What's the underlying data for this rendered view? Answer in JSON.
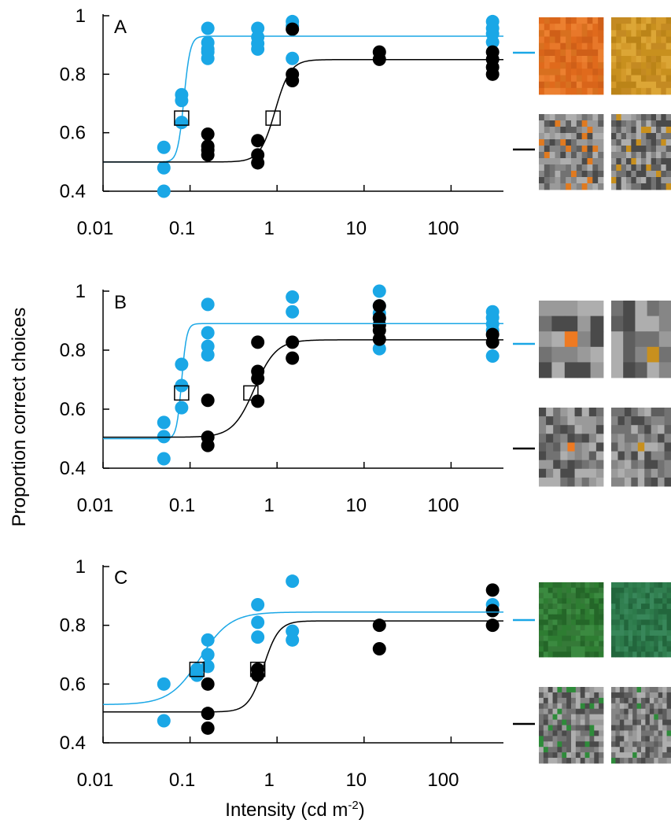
{
  "ylabel": "Proportion correct choices",
  "xlabel": {
    "text": "Intensity (cd m",
    "superscript": "-2",
    "suffix": ")"
  },
  "chart_data": [
    {
      "type": "scatter",
      "label": "A",
      "xlog": true,
      "xlim": [
        0.01,
        400
      ],
      "ylim": [
        0.4,
        1
      ],
      "xticks": [
        0.01,
        0.1,
        1,
        10,
        100
      ],
      "yticks": [
        0.4,
        0.6,
        0.8,
        1
      ],
      "series": [
        {
          "color": "#1aa7e6",
          "x": [
            0.05,
            0.05,
            0.05,
            0.08,
            0.08,
            0.08,
            0.16,
            0.16,
            0.16,
            0.16,
            0.16,
            0.6,
            0.6,
            0.6,
            0.6,
            1.5,
            1.5,
            1.5,
            300,
            300,
            300,
            300
          ],
          "y": [
            0.55,
            0.48,
            0.4,
            0.73,
            0.71,
            0.635,
            0.957,
            0.908,
            0.886,
            0.876,
            0.854,
            0.957,
            0.927,
            0.905,
            0.886,
            0.98,
            0.965,
            0.854,
            0.98,
            0.957,
            0.938,
            0.91
          ],
          "threshold": {
            "x": 0.08,
            "y": 0.65
          },
          "fit": {
            "lower": 0.5,
            "upper": 0.93,
            "midpoint": 0.085,
            "slope": 12
          }
        },
        {
          "color": "#000000",
          "x": [
            0.16,
            0.16,
            0.16,
            0.16,
            0.6,
            0.6,
            0.6,
            1.5,
            1.5,
            1.5,
            15,
            15,
            300,
            300,
            300,
            300
          ],
          "y": [
            0.595,
            0.554,
            0.541,
            0.524,
            0.573,
            0.524,
            0.497,
            0.954,
            0.8,
            0.778,
            0.876,
            0.851,
            0.876,
            0.851,
            0.824,
            0.8
          ],
          "threshold": {
            "x": 0.9,
            "y": 0.65
          },
          "fit": {
            "lower": 0.5,
            "upper": 0.85,
            "midpoint": 0.95,
            "slope": 5
          }
        }
      ]
    },
    {
      "type": "scatter",
      "label": "B",
      "xlog": true,
      "xlim": [
        0.01,
        400
      ],
      "ylim": [
        0.4,
        1
      ],
      "xticks": [
        0.01,
        0.1,
        1,
        10,
        100
      ],
      "yticks": [
        0.4,
        0.6,
        0.8,
        1
      ],
      "series": [
        {
          "color": "#1aa7e6",
          "x": [
            0.05,
            0.05,
            0.05,
            0.08,
            0.08,
            0.08,
            0.16,
            0.16,
            0.16,
            0.16,
            1.5,
            1.5,
            15,
            15,
            15,
            15,
            15,
            300,
            300,
            300,
            300,
            300
          ],
          "y": [
            0.555,
            0.507,
            0.432,
            0.752,
            0.68,
            0.605,
            0.955,
            0.859,
            0.813,
            0.784,
            0.98,
            0.93,
            1.0,
            0.95,
            0.925,
            0.907,
            0.805,
            0.93,
            0.91,
            0.888,
            0.867,
            0.78
          ],
          "threshold": {
            "x": 0.08,
            "y": 0.655
          },
          "fit": {
            "lower": 0.5,
            "upper": 0.89,
            "midpoint": 0.08,
            "slope": 15
          }
        },
        {
          "color": "#000000",
          "x": [
            0.16,
            0.16,
            0.16,
            0.6,
            0.6,
            0.6,
            0.6,
            1.5,
            1.5,
            15,
            15,
            15,
            15,
            15,
            300,
            300
          ],
          "y": [
            0.63,
            0.505,
            0.477,
            0.827,
            0.728,
            0.704,
            0.627,
            0.827,
            0.773,
            0.95,
            0.909,
            0.885,
            0.867,
            0.837,
            0.853,
            0.827
          ],
          "threshold": {
            "x": 0.5,
            "y": 0.655
          },
          "fit": {
            "lower": 0.505,
            "upper": 0.835,
            "midpoint": 0.55,
            "slope": 3.5
          }
        }
      ]
    },
    {
      "type": "scatter",
      "label": "C",
      "xlog": true,
      "xlim": [
        0.01,
        400
      ],
      "ylim": [
        0.4,
        1
      ],
      "xticks": [
        0.01,
        0.1,
        1,
        10,
        100
      ],
      "yticks": [
        0.4,
        0.6,
        0.8,
        1
      ],
      "series": [
        {
          "color": "#1aa7e6",
          "x": [
            0.05,
            0.05,
            0.12,
            0.12,
            0.16,
            0.16,
            0.16,
            0.6,
            0.6,
            0.6,
            1.5,
            1.5,
            1.5,
            300
          ],
          "y": [
            0.6,
            0.475,
            0.65,
            0.63,
            0.75,
            0.7,
            0.66,
            0.87,
            0.81,
            0.76,
            0.95,
            0.78,
            0.75,
            0.87
          ],
          "threshold": {
            "x": 0.12,
            "y": 0.65
          },
          "fit": {
            "lower": 0.53,
            "upper": 0.845,
            "midpoint": 0.13,
            "slope": 2.5
          }
        },
        {
          "color": "#000000",
          "x": [
            0.16,
            0.16,
            0.16,
            0.6,
            0.6,
            15,
            15,
            300,
            300,
            300
          ],
          "y": [
            0.6,
            0.5,
            0.45,
            0.65,
            0.63,
            0.8,
            0.72,
            0.92,
            0.85,
            0.8
          ],
          "threshold": {
            "x": 0.6,
            "y": 0.65
          },
          "fit": {
            "lower": 0.505,
            "upper": 0.815,
            "midpoint": 0.7,
            "slope": 5
          }
        }
      ]
    }
  ]
}
